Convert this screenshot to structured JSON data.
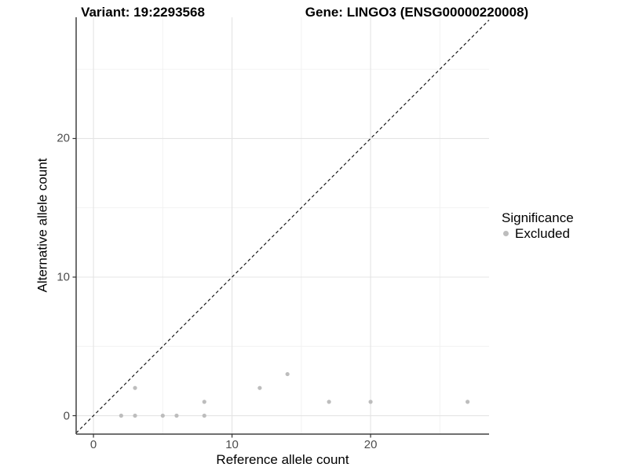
{
  "chart_data": {
    "type": "scatter",
    "title_left": "Variant: 19:2293568",
    "title_right": "Gene: LINGO3 (ENSG00000220008)",
    "xlabel": "Reference allele count",
    "ylabel": "Alternative allele count",
    "x_ticks": [
      0,
      10,
      20
    ],
    "y_ticks": [
      0,
      10,
      20
    ],
    "minor_gridlines": [
      5,
      15,
      25
    ],
    "xlim": [
      -1.25,
      28.55
    ],
    "ylim": [
      -1.33,
      28.75
    ],
    "grid": true,
    "legend": {
      "title": "Significance",
      "position": "right",
      "items": [
        {
          "label": "Excluded",
          "color": "#bdbdbd"
        }
      ]
    },
    "reference_line": {
      "kind": "identity y=x",
      "style": "dashed",
      "color": "#1a1a1a"
    },
    "series": [
      {
        "name": "Excluded",
        "color": "#bdbdbd",
        "points": [
          [
            2,
            0
          ],
          [
            3,
            0
          ],
          [
            3,
            2
          ],
          [
            5,
            0
          ],
          [
            6,
            0
          ],
          [
            8,
            0
          ],
          [
            8,
            1
          ],
          [
            12,
            2
          ],
          [
            14,
            3
          ],
          [
            17,
            1
          ],
          [
            20,
            1
          ],
          [
            27,
            1
          ]
        ]
      }
    ]
  },
  "colors": {
    "point": "#bdbdbd",
    "axis_line": "#404040",
    "tick_mark": "#333333",
    "tick_text": "#4d4d4d",
    "title_text": "#000000",
    "grid_major": "#e4e4e4",
    "grid_minor": "#f1f1f1",
    "background": "#ffffff"
  }
}
